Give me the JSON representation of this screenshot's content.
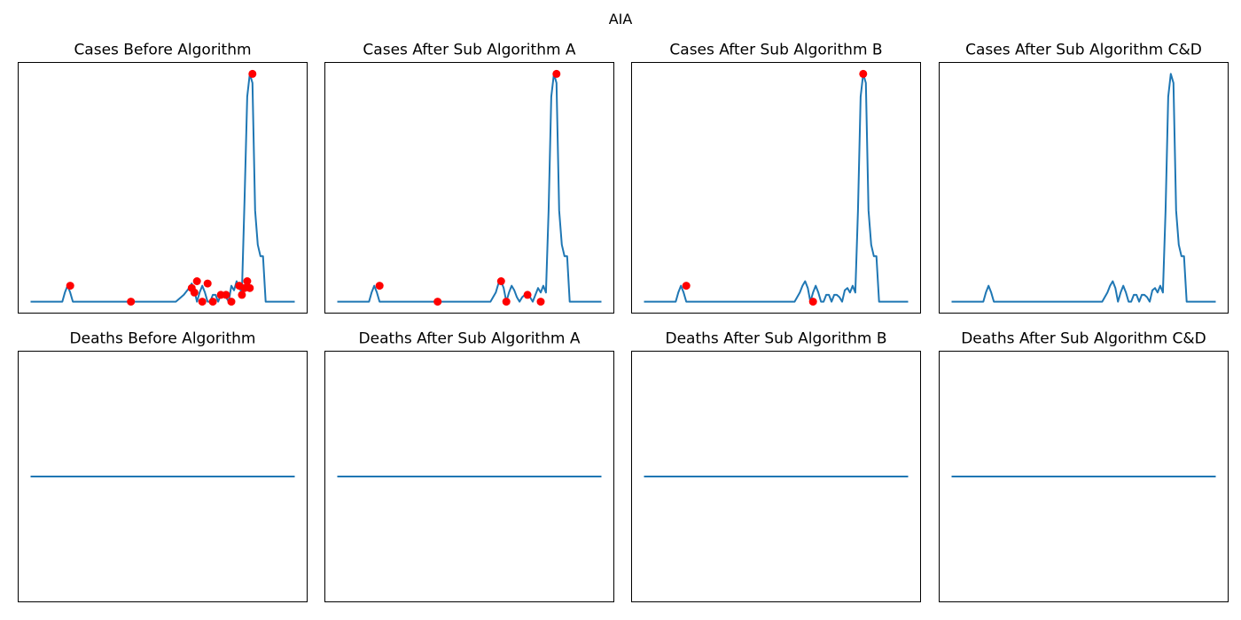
{
  "figure": {
    "title": "AIA"
  },
  "chart_data": [
    {
      "type": "line",
      "title": "Cases Before Algorithm",
      "xlabel": "",
      "ylabel": "",
      "xlim": [
        0,
        100
      ],
      "ylim": [
        -0.05,
        1.05
      ],
      "grid": false,
      "series": [
        {
          "x": [
            0,
            12,
            13,
            14,
            15,
            16,
            17,
            18,
            55,
            58,
            60,
            61,
            62,
            63,
            64,
            65,
            66,
            67,
            68,
            69,
            70,
            71,
            72,
            73,
            74,
            75,
            76,
            77,
            78,
            79,
            80,
            81,
            82,
            83,
            84,
            85,
            86,
            87,
            88,
            89,
            90,
            91,
            92,
            93,
            94,
            95,
            96,
            97,
            98,
            99,
            100
          ],
          "y": [
            0,
            0,
            0.04,
            0.07,
            0.04,
            0,
            0,
            0,
            0,
            0.03,
            0.06,
            0.08,
            0.05,
            0,
            0.04,
            0.07,
            0.04,
            0,
            0,
            0.03,
            0.03,
            0,
            0.03,
            0.03,
            0.02,
            0,
            0.07,
            0.05,
            0.09,
            0.06,
            0.04,
            0.45,
            0.9,
            1.0,
            0.96,
            0.4,
            0.25,
            0.2,
            0.2,
            0,
            0,
            0,
            0,
            0,
            0,
            0,
            0,
            0,
            0,
            0,
            0
          ]
        }
      ],
      "markers": {
        "x": [
          15,
          38,
          61,
          62,
          63,
          65,
          67,
          69,
          72,
          74,
          76,
          79,
          80,
          81,
          82,
          83,
          84
        ],
        "y": [
          0.07,
          0,
          0.06,
          0.04,
          0.09,
          0,
          0.08,
          0,
          0.03,
          0.03,
          0,
          0.07,
          0.03,
          0.06,
          0.09,
          0.06,
          1.0
        ]
      }
    },
    {
      "type": "line",
      "title": "Cases After Sub Algorithm A",
      "xlabel": "",
      "ylabel": "",
      "xlim": [
        0,
        100
      ],
      "ylim": [
        -0.05,
        1.05
      ],
      "grid": false,
      "series": [
        {
          "x": [
            0,
            12,
            13,
            14,
            15,
            16,
            17,
            18,
            58,
            60,
            61,
            62,
            63,
            64,
            65,
            66,
            67,
            68,
            69,
            70,
            71,
            72,
            73,
            74,
            75,
            76,
            77,
            78,
            79,
            80,
            81,
            82,
            83,
            84,
            85,
            86,
            87,
            88,
            89,
            90,
            91,
            92,
            93,
            94,
            95,
            96,
            97,
            98,
            99,
            100
          ],
          "y": [
            0,
            0,
            0.04,
            0.07,
            0.04,
            0,
            0,
            0,
            0,
            0.04,
            0.08,
            0.09,
            0.06,
            0,
            0.04,
            0.07,
            0.05,
            0.02,
            0,
            0.02,
            0.03,
            0.03,
            0.02,
            0,
            0.03,
            0.06,
            0.04,
            0.07,
            0.04,
            0.4,
            0.9,
            1.0,
            0.96,
            0.4,
            0.25,
            0.2,
            0.2,
            0,
            0,
            0,
            0,
            0,
            0,
            0,
            0,
            0,
            0,
            0,
            0,
            0
          ]
        }
      ],
      "markers": {
        "x": [
          16,
          38,
          62,
          64,
          72,
          77,
          83
        ],
        "y": [
          0.07,
          0,
          0.09,
          0,
          0.03,
          0,
          1.0
        ]
      }
    },
    {
      "type": "line",
      "title": "Cases After Sub Algorithm B",
      "xlabel": "",
      "ylabel": "",
      "xlim": [
        0,
        100
      ],
      "ylim": [
        -0.05,
        1.05
      ],
      "grid": false,
      "series": [
        {
          "x": [
            0,
            12,
            13,
            14,
            15,
            16,
            17,
            18,
            57,
            59,
            60,
            61,
            62,
            63,
            64,
            65,
            66,
            67,
            68,
            69,
            70,
            71,
            72,
            73,
            74,
            75,
            76,
            77,
            78,
            79,
            80,
            81,
            82,
            83,
            84,
            85,
            86,
            87,
            88,
            89,
            90,
            91,
            92,
            93,
            94,
            95,
            96,
            97,
            98,
            99,
            100
          ],
          "y": [
            0,
            0,
            0.04,
            0.07,
            0.04,
            0,
            0,
            0,
            0,
            0.04,
            0.07,
            0.09,
            0.06,
            0,
            0.04,
            0.07,
            0.04,
            0,
            0,
            0.03,
            0.03,
            0,
            0.03,
            0.03,
            0.02,
            0,
            0.05,
            0.06,
            0.04,
            0.07,
            0.04,
            0.4,
            0.9,
            1.0,
            0.96,
            0.4,
            0.25,
            0.2,
            0.2,
            0,
            0,
            0,
            0,
            0,
            0,
            0,
            0,
            0,
            0,
            0,
            0
          ]
        }
      ],
      "markers": {
        "x": [
          16,
          64,
          83
        ],
        "y": [
          0.07,
          0,
          1.0
        ]
      }
    },
    {
      "type": "line",
      "title": "Cases After Sub Algorithm C&D",
      "xlabel": "",
      "ylabel": "",
      "xlim": [
        0,
        100
      ],
      "ylim": [
        -0.05,
        1.05
      ],
      "grid": false,
      "series": [
        {
          "x": [
            0,
            12,
            13,
            14,
            15,
            16,
            17,
            18,
            57,
            59,
            60,
            61,
            62,
            63,
            64,
            65,
            66,
            67,
            68,
            69,
            70,
            71,
            72,
            73,
            74,
            75,
            76,
            77,
            78,
            79,
            80,
            81,
            82,
            83,
            84,
            85,
            86,
            87,
            88,
            89,
            90,
            91,
            92,
            93,
            94,
            95,
            96,
            97,
            98,
            99,
            100
          ],
          "y": [
            0,
            0,
            0.04,
            0.07,
            0.04,
            0,
            0,
            0,
            0,
            0.04,
            0.07,
            0.09,
            0.06,
            0,
            0.04,
            0.07,
            0.04,
            0,
            0,
            0.03,
            0.03,
            0,
            0.03,
            0.03,
            0.02,
            0,
            0.05,
            0.06,
            0.04,
            0.07,
            0.04,
            0.4,
            0.9,
            1.0,
            0.96,
            0.4,
            0.25,
            0.2,
            0.2,
            0,
            0,
            0,
            0,
            0,
            0,
            0,
            0,
            0,
            0,
            0,
            0
          ]
        }
      ],
      "markers": {
        "x": [],
        "y": []
      }
    },
    {
      "type": "line",
      "title": "Deaths Before Algorithm",
      "xlabel": "",
      "ylabel": "",
      "xlim": [
        0,
        100
      ],
      "ylim": [
        -0.055,
        0.055
      ],
      "grid": false,
      "series": [
        {
          "x": [
            0,
            100
          ],
          "y": [
            0,
            0
          ]
        }
      ],
      "markers": {
        "x": [],
        "y": []
      }
    },
    {
      "type": "line",
      "title": "Deaths After Sub Algorithm A",
      "xlabel": "",
      "ylabel": "",
      "xlim": [
        0,
        100
      ],
      "ylim": [
        -0.055,
        0.055
      ],
      "grid": false,
      "series": [
        {
          "x": [
            0,
            100
          ],
          "y": [
            0,
            0
          ]
        }
      ],
      "markers": {
        "x": [],
        "y": []
      }
    },
    {
      "type": "line",
      "title": "Deaths After Sub Algorithm B",
      "xlabel": "",
      "ylabel": "",
      "xlim": [
        0,
        100
      ],
      "ylim": [
        -0.055,
        0.055
      ],
      "grid": false,
      "series": [
        {
          "x": [
            0,
            100
          ],
          "y": [
            0,
            0
          ]
        }
      ],
      "markers": {
        "x": [],
        "y": []
      }
    },
    {
      "type": "line",
      "title": "Deaths After Sub Algorithm C&D",
      "xlabel": "",
      "ylabel": "",
      "xlim": [
        0,
        100
      ],
      "ylim": [
        -0.055,
        0.055
      ],
      "grid": false,
      "series": [
        {
          "x": [
            0,
            100
          ],
          "y": [
            0,
            0
          ]
        }
      ],
      "markers": {
        "x": [],
        "y": []
      }
    }
  ]
}
